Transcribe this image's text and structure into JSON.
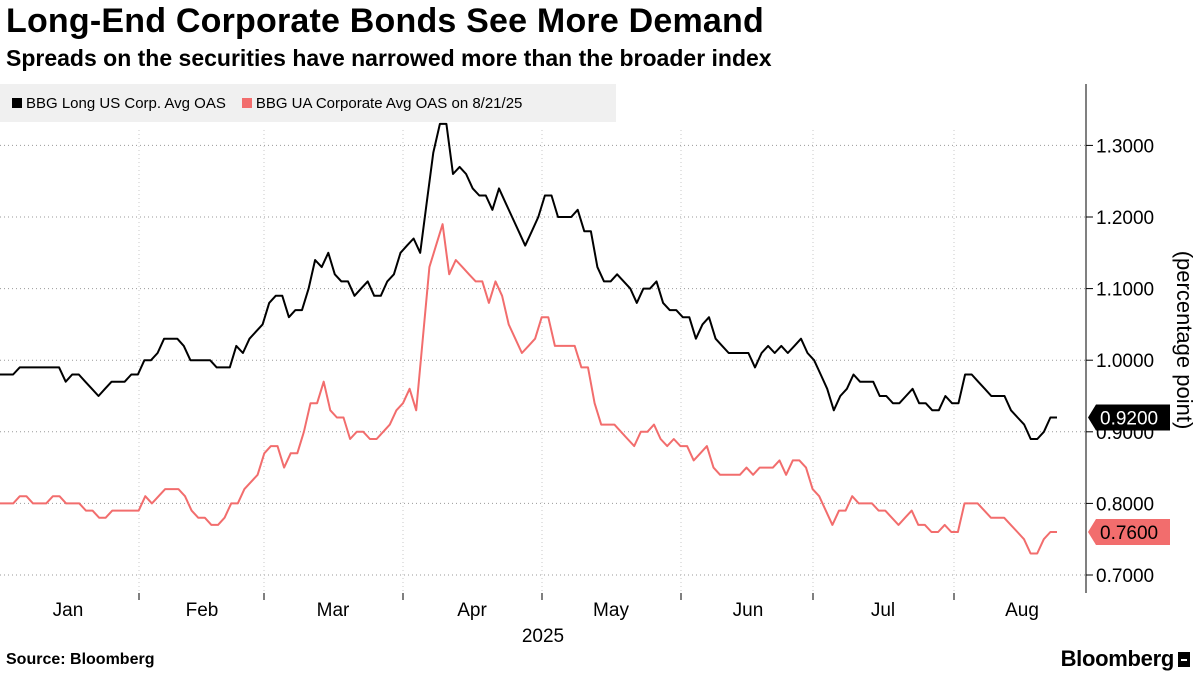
{
  "header": {
    "title": "Long-End Corporate Bonds See More Demand",
    "subtitle": "Spreads on the securities have narrowed more than the broader index"
  },
  "footer": {
    "source": "Source: Bloomberg",
    "brand": "Bloomberg"
  },
  "colors": {
    "series1": "#000000",
    "series2": "#f26d6d",
    "legend_bg": "#f0f0f0"
  },
  "chart_data": {
    "type": "line",
    "title": "Long-End Corporate Bonds See More Demand",
    "xlabel": "2025",
    "ylabel": "(percentage point)",
    "ylim": [
      0.68,
      1.38
    ],
    "yticks": [
      0.7,
      0.8,
      0.9,
      1.0,
      1.1,
      1.2,
      1.3
    ],
    "ytick_labels": [
      "0.7000",
      "0.8000",
      "0.9000",
      "1.0000",
      "1.1000",
      "1.2000",
      "1.3000"
    ],
    "month_labels": [
      "Jan",
      "Feb",
      "Mar",
      "Apr",
      "May",
      "Jun",
      "Jul",
      "Aug"
    ],
    "year_label": "2025",
    "grid": "horizontal-dotted",
    "legend_position": "top-left",
    "series": [
      {
        "name": "BBG Long US Corp. Avg OAS",
        "last_value_label": "0.9200",
        "values": [
          0.98,
          0.98,
          0.98,
          0.99,
          0.99,
          0.99,
          0.99,
          0.99,
          0.99,
          0.99,
          0.97,
          0.98,
          0.98,
          0.97,
          0.96,
          0.95,
          0.96,
          0.97,
          0.97,
          0.97,
          0.98,
          0.98,
          1.0,
          1.0,
          1.01,
          1.03,
          1.03,
          1.03,
          1.02,
          1.0,
          1.0,
          1.0,
          1.0,
          0.99,
          0.99,
          0.99,
          1.02,
          1.01,
          1.03,
          1.04,
          1.05,
          1.08,
          1.09,
          1.09,
          1.06,
          1.07,
          1.07,
          1.1,
          1.14,
          1.13,
          1.15,
          1.12,
          1.11,
          1.11,
          1.09,
          1.1,
          1.11,
          1.09,
          1.09,
          1.11,
          1.12,
          1.15,
          1.16,
          1.17,
          1.15,
          1.22,
          1.29,
          1.33,
          1.33,
          1.26,
          1.27,
          1.26,
          1.24,
          1.23,
          1.23,
          1.21,
          1.24,
          1.22,
          1.2,
          1.18,
          1.16,
          1.18,
          1.2,
          1.23,
          1.23,
          1.2,
          1.2,
          1.2,
          1.21,
          1.18,
          1.18,
          1.13,
          1.11,
          1.11,
          1.12,
          1.11,
          1.1,
          1.08,
          1.1,
          1.1,
          1.11,
          1.08,
          1.07,
          1.07,
          1.06,
          1.06,
          1.03,
          1.05,
          1.06,
          1.03,
          1.02,
          1.01,
          1.01,
          1.01,
          1.01,
          0.99,
          1.01,
          1.02,
          1.01,
          1.02,
          1.01,
          1.02,
          1.03,
          1.01,
          1.0,
          0.98,
          0.96,
          0.93,
          0.95,
          0.96,
          0.98,
          0.97,
          0.97,
          0.97,
          0.95,
          0.95,
          0.94,
          0.94,
          0.95,
          0.96,
          0.94,
          0.94,
          0.93,
          0.93,
          0.95,
          0.94,
          0.94,
          0.98,
          0.98,
          0.97,
          0.96,
          0.95,
          0.95,
          0.95,
          0.93,
          0.92,
          0.91,
          0.89,
          0.89,
          0.9,
          0.92,
          0.92
        ]
      },
      {
        "name": "BBG UA Corporate Avg OAS on 8/21/25",
        "last_value_label": "0.7600",
        "values": [
          0.8,
          0.8,
          0.8,
          0.81,
          0.81,
          0.8,
          0.8,
          0.8,
          0.81,
          0.81,
          0.8,
          0.8,
          0.8,
          0.79,
          0.79,
          0.78,
          0.78,
          0.79,
          0.79,
          0.79,
          0.79,
          0.79,
          0.81,
          0.8,
          0.81,
          0.82,
          0.82,
          0.82,
          0.81,
          0.79,
          0.78,
          0.78,
          0.77,
          0.77,
          0.78,
          0.8,
          0.8,
          0.82,
          0.83,
          0.84,
          0.87,
          0.88,
          0.88,
          0.85,
          0.87,
          0.87,
          0.9,
          0.94,
          0.94,
          0.97,
          0.93,
          0.92,
          0.92,
          0.89,
          0.9,
          0.9,
          0.89,
          0.89,
          0.9,
          0.91,
          0.93,
          0.94,
          0.96,
          0.93,
          1.03,
          1.13,
          1.16,
          1.19,
          1.12,
          1.14,
          1.13,
          1.12,
          1.11,
          1.11,
          1.08,
          1.11,
          1.09,
          1.05,
          1.03,
          1.01,
          1.02,
          1.03,
          1.06,
          1.06,
          1.02,
          1.02,
          1.02,
          1.02,
          0.99,
          0.99,
          0.94,
          0.91,
          0.91,
          0.91,
          0.9,
          0.89,
          0.88,
          0.9,
          0.9,
          0.91,
          0.89,
          0.88,
          0.89,
          0.88,
          0.88,
          0.86,
          0.87,
          0.88,
          0.85,
          0.84,
          0.84,
          0.84,
          0.84,
          0.85,
          0.84,
          0.85,
          0.85,
          0.85,
          0.86,
          0.84,
          0.86,
          0.86,
          0.85,
          0.82,
          0.81,
          0.79,
          0.77,
          0.79,
          0.79,
          0.81,
          0.8,
          0.8,
          0.8,
          0.79,
          0.79,
          0.78,
          0.77,
          0.78,
          0.79,
          0.77,
          0.77,
          0.76,
          0.76,
          0.77,
          0.76,
          0.76,
          0.8,
          0.8,
          0.8,
          0.79,
          0.78,
          0.78,
          0.78,
          0.77,
          0.76,
          0.75,
          0.73,
          0.73,
          0.75,
          0.76,
          0.76
        ]
      }
    ]
  }
}
